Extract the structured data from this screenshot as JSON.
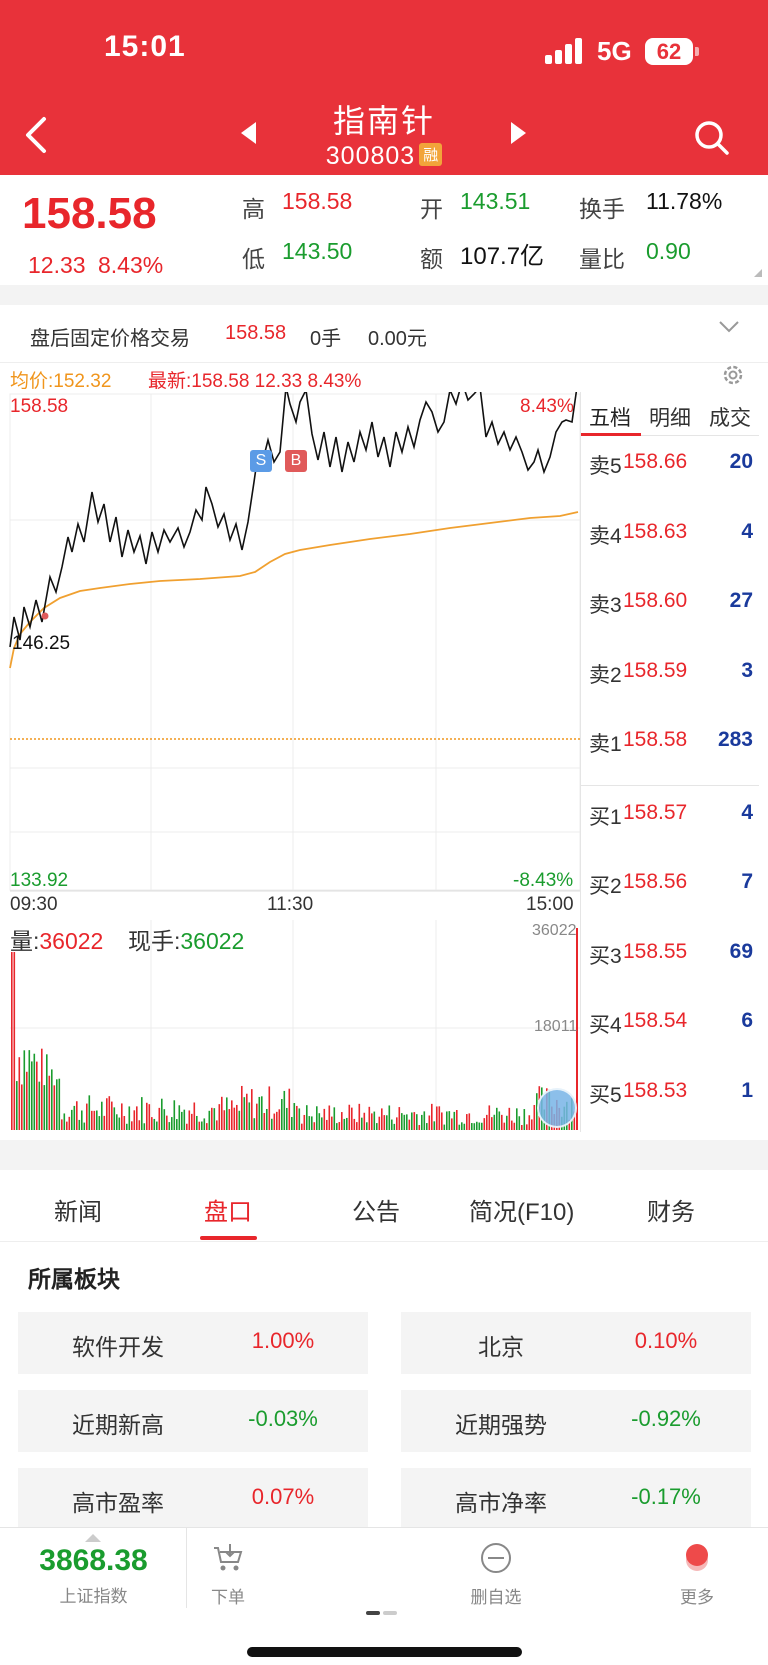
{
  "status_bar": {
    "time": "15:01",
    "network": "5G",
    "battery": "62"
  },
  "header": {
    "stock_name": "指南针",
    "stock_code": "300803",
    "badge": "融"
  },
  "summary": {
    "last_price": "158.58",
    "change_abs": "12.33",
    "change_pct": "8.43%",
    "high_label": "高",
    "high": "158.58",
    "low_label": "低",
    "low": "143.50",
    "open_label": "开",
    "open": "143.51",
    "amount_label": "额",
    "amount": "107.7亿",
    "turnover_label": "换手",
    "turnover": "11.78%",
    "vol_ratio_label": "量比",
    "vol_ratio": "0.90"
  },
  "after_hours": {
    "label": "盘后固定价格交易",
    "price": "158.58",
    "volume": "0手",
    "amount": "0.00元"
  },
  "chart": {
    "avg_price_label": "均价:152.32",
    "latest_label": "最新:158.58 12.33 8.43%",
    "y_max": "158.58",
    "y_max_pct": "8.43%",
    "y_min": "133.92",
    "y_min_pct": "-8.43%",
    "low_point": "146.25",
    "marker_s": "S",
    "marker_b": "B",
    "time_start": "09:30",
    "time_mid": "11:30",
    "time_end": "15:00",
    "volume_label": "量:",
    "volume_value": "36022",
    "current_label": "现手:",
    "current_value": "36022",
    "vol_axis_max": "36022",
    "vol_axis_mid": "18011"
  },
  "orderbook": {
    "tabs": [
      "五档",
      "明细",
      "成交"
    ],
    "asks": [
      {
        "side": "卖5",
        "price": "158.66",
        "qty": "20"
      },
      {
        "side": "卖4",
        "price": "158.63",
        "qty": "4"
      },
      {
        "side": "卖3",
        "price": "158.60",
        "qty": "27"
      },
      {
        "side": "卖2",
        "price": "158.59",
        "qty": "3"
      },
      {
        "side": "卖1",
        "price": "158.58",
        "qty": "283"
      }
    ],
    "bids": [
      {
        "side": "买1",
        "price": "158.57",
        "qty": "4"
      },
      {
        "side": "买2",
        "price": "158.56",
        "qty": "7"
      },
      {
        "side": "买3",
        "price": "158.55",
        "qty": "69"
      },
      {
        "side": "买4",
        "price": "158.54",
        "qty": "6"
      },
      {
        "side": "买5",
        "price": "158.53",
        "qty": "1"
      }
    ]
  },
  "info_tabs": [
    "新闻",
    "盘口",
    "公告",
    "简况(F10)",
    "财务"
  ],
  "sectors": {
    "title": "所属板块",
    "items": [
      {
        "name": "软件开发",
        "value": "1.00%",
        "trend": "up"
      },
      {
        "name": "北京",
        "value": "0.10%",
        "trend": "up"
      },
      {
        "name": "近期新高",
        "value": "-0.03%",
        "trend": "down"
      },
      {
        "name": "近期强势",
        "value": "-0.92%",
        "trend": "down"
      },
      {
        "name": "高市盈率",
        "value": "0.07%",
        "trend": "up"
      },
      {
        "name": "高市净率",
        "value": "-0.17%",
        "trend": "down"
      }
    ]
  },
  "bottom_bar": {
    "index_value": "3868.38",
    "index_name": "上证指数",
    "order_label": "下单",
    "remove_label": "删自选",
    "more_label": "更多"
  },
  "colors": {
    "header_red": "#e8323a",
    "up_red": "#e8262b",
    "down_green": "#1a9c2e",
    "avg_orange": "#f0951c",
    "bid_ask_qty_blue": "#1a3a9c"
  }
}
